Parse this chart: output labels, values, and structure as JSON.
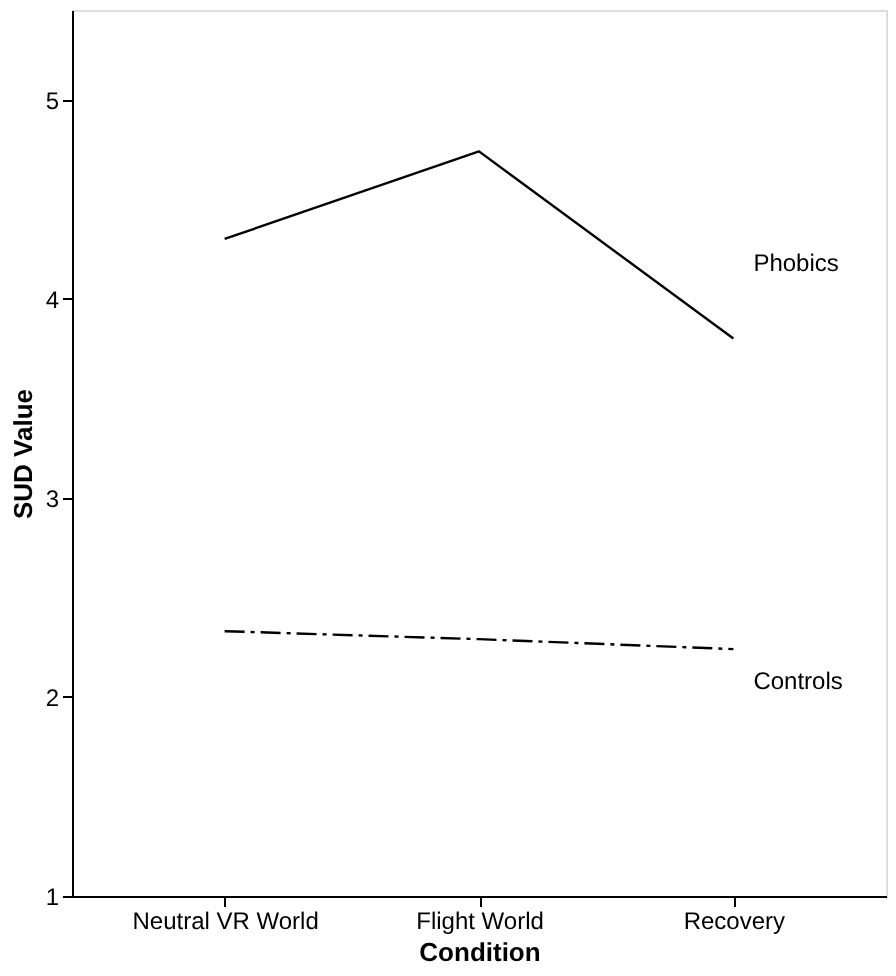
{
  "chart_data": {
    "type": "line",
    "xlabel": "Condition",
    "ylabel": "SUD Value",
    "categories": [
      "Neutral VR World",
      "Flight World",
      "Recovery"
    ],
    "series": [
      {
        "name": "Phobics",
        "color": "#000000",
        "line_style": "solid",
        "values": [
          4.3,
          4.74,
          3.8
        ]
      },
      {
        "name": "Controls",
        "color": "#000000",
        "line_style": "dashed",
        "values": [
          2.33,
          2.29,
          2.24
        ]
      }
    ],
    "ylim": [
      1,
      5.45
    ],
    "yticks": [
      1,
      2,
      3,
      4,
      5
    ],
    "grid": false,
    "legend": false,
    "marker": "none"
  }
}
